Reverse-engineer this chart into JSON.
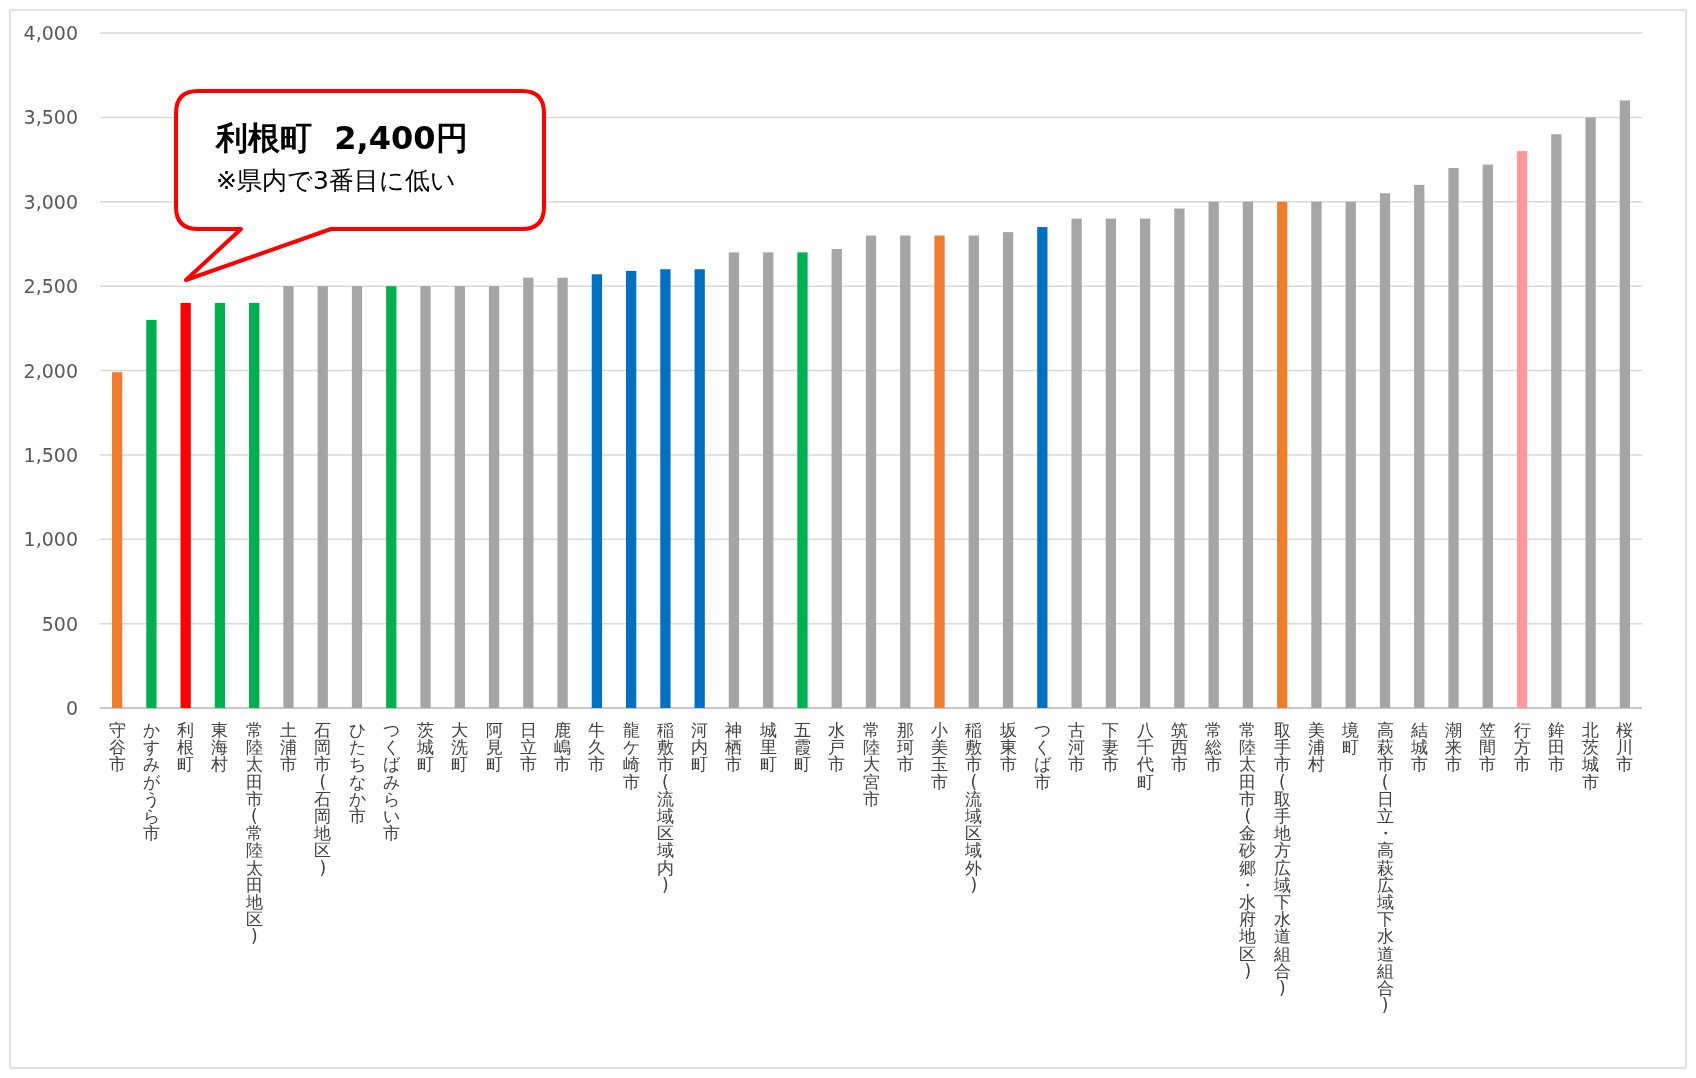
{
  "chart_data": {
    "type": "bar",
    "categories": [
      "守谷市",
      "かすみがうら市",
      "利根町",
      "東海村",
      "常陸太田市(常陸太田地区)",
      "土浦市",
      "石岡市(石岡地区)",
      "ひたちなか市",
      "つくばみらい市",
      "茨城町",
      "大洗町",
      "阿見町",
      "日立市",
      "鹿嶋市",
      "牛久市",
      "龍ケ崎市",
      "稲敷市(流域区域内)",
      "河内町",
      "神栖市",
      "城里町",
      "五霞町",
      "水戸市",
      "常陸大宮市",
      "那珂市",
      "小美玉市",
      "稲敷市(流域区域外)",
      "坂東市",
      "つくば市",
      "古河市",
      "下妻市",
      "八千代町",
      "筑西市",
      "常総市",
      "常陸太田市(金砂郷・水府地区)",
      "取手市(取手地方広域下水道組合)",
      "美浦村",
      "境町",
      "高萩市(日立・高萩広域下水道組合)",
      "結城市",
      "潮来市",
      "笠間市",
      "行方市",
      "鉾田市",
      "北茨城市",
      "桜川市"
    ],
    "values": [
      1990,
      2300,
      2400,
      2400,
      2400,
      2500,
      2500,
      2500,
      2500,
      2500,
      2500,
      2500,
      2550,
      2550,
      2570,
      2590,
      2600,
      2600,
      2700,
      2700,
      2700,
      2720,
      2800,
      2800,
      2800,
      2800,
      2820,
      2850,
      2900,
      2900,
      2900,
      2960,
      3000,
      3000,
      3000,
      3000,
      3000,
      3050,
      3100,
      3200,
      3220,
      3300,
      3400,
      3500,
      3600
    ],
    "colors": [
      "#ed7d31",
      "#00b050",
      "#ff0000",
      "#00b050",
      "#00b050",
      "#a5a5a5",
      "#a5a5a5",
      "#a5a5a5",
      "#00b050",
      "#a5a5a5",
      "#a5a5a5",
      "#a5a5a5",
      "#a5a5a5",
      "#a5a5a5",
      "#0070c0",
      "#0070c0",
      "#0070c0",
      "#0070c0",
      "#a5a5a5",
      "#a5a5a5",
      "#00b050",
      "#a5a5a5",
      "#a5a5a5",
      "#a5a5a5",
      "#ed7d31",
      "#a5a5a5",
      "#a5a5a5",
      "#0070c0",
      "#a5a5a5",
      "#a5a5a5",
      "#a5a5a5",
      "#a5a5a5",
      "#a5a5a5",
      "#a5a5a5",
      "#ed7d31",
      "#a5a5a5",
      "#a5a5a5",
      "#a5a5a5",
      "#a5a5a5",
      "#a5a5a5",
      "#a5a5a5",
      "#ff9999",
      "#a5a5a5",
      "#a5a5a5",
      "#a5a5a5"
    ],
    "ylim": [
      0,
      4000
    ],
    "yticks": [
      0,
      500,
      {
        "value": 1000,
        "label": "1,000"
      },
      {
        "value": 1500,
        "label": "1,500"
      },
      {
        "value": 2000,
        "label": "2,000"
      },
      {
        "value": 2500,
        "label": "2,500"
      },
      {
        "value": 3000,
        "label": "3,000"
      },
      {
        "value": 3500,
        "label": "3,500"
      },
      {
        "value": 4000,
        "label": "4,000"
      }
    ],
    "grid": "y",
    "annotations": [
      "利根町  2,400円",
      "※県内で3番目に低い"
    ]
  }
}
